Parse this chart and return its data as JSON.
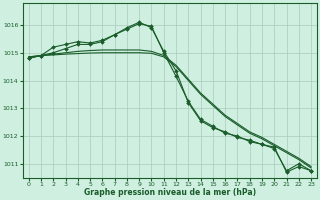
{
  "title": "Graphe pression niveau de la mer (hPa)",
  "background_color": "#cff0e0",
  "plot_bg_color": "#cff0e0",
  "grid_color": "#aaccbb",
  "line_color": "#1a5c2a",
  "marker_color": "#1a5c2a",
  "ylim": [
    1010.5,
    1016.8
  ],
  "xlim": [
    -0.5,
    23.5
  ],
  "yticks": [
    1011,
    1012,
    1013,
    1014,
    1015,
    1016
  ],
  "xticks": [
    0,
    1,
    2,
    3,
    4,
    5,
    6,
    7,
    8,
    9,
    10,
    11,
    12,
    13,
    14,
    15,
    16,
    17,
    18,
    19,
    20,
    21,
    22,
    23
  ],
  "series_with_markers": [
    [
      1014.8,
      1014.9,
      1015.2,
      1015.3,
      1015.4,
      1015.35,
      1015.45,
      1015.65,
      1015.9,
      1016.1,
      1015.9,
      1015.05,
      1014.35,
      1013.2,
      1012.55,
      1012.3,
      1012.15,
      1011.95,
      1011.85,
      1011.7,
      1011.55,
      1010.75,
      1011.0,
      1010.75
    ],
    [
      1014.8,
      1014.9,
      1015.0,
      1015.15,
      1015.3,
      1015.3,
      1015.4,
      1015.65,
      1015.85,
      1016.05,
      1015.95,
      1015.0,
      1014.15,
      1013.25,
      1012.6,
      1012.35,
      1012.1,
      1012.0,
      1011.8,
      1011.7,
      1011.6,
      1010.7,
      1010.9,
      1010.75
    ]
  ],
  "series_no_markers": [
    [
      1014.85,
      1014.9,
      1014.92,
      1014.95,
      1014.97,
      1014.99,
      1015.0,
      1015.0,
      1015.0,
      1015.0,
      1014.98,
      1014.85,
      1014.5,
      1014.0,
      1013.5,
      1013.1,
      1012.7,
      1012.4,
      1012.1,
      1011.9,
      1011.65,
      1011.4,
      1011.15,
      1010.85
    ],
    [
      1014.85,
      1014.9,
      1014.95,
      1015.0,
      1015.05,
      1015.08,
      1015.1,
      1015.1,
      1015.1,
      1015.1,
      1015.05,
      1014.9,
      1014.55,
      1014.05,
      1013.55,
      1013.15,
      1012.75,
      1012.45,
      1012.15,
      1011.95,
      1011.7,
      1011.45,
      1011.2,
      1010.9
    ]
  ]
}
